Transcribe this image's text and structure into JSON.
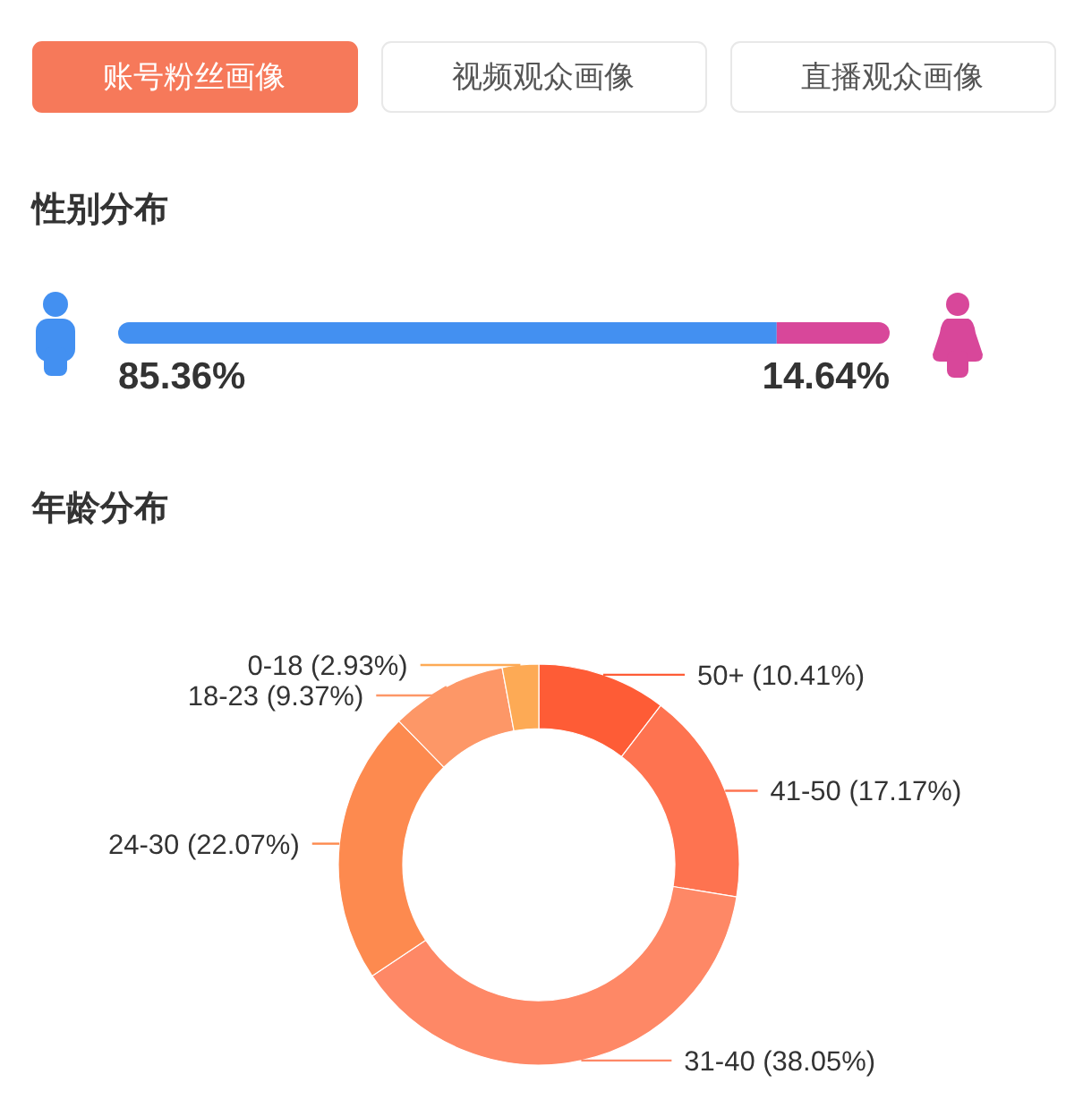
{
  "chart_data": [
    {
      "type": "other",
      "annotations": [
        "账号粉丝画像",
        "视频观众画像",
        "直播观众画像"
      ]
    },
    {
      "type": "bar",
      "title": "性别分布",
      "orientation": "horizontal",
      "stacked": true,
      "categories": [
        null
      ],
      "series": [
        {
          "color": "#4390f1",
          "values": [
            85.36
          ],
          "value_labels": [
            "85.36%"
          ]
        },
        {
          "color": "#d8479a",
          "values": [
            14.64
          ],
          "value_labels": [
            "14.64%"
          ]
        }
      ]
    },
    {
      "type": "donut",
      "title": "年龄分布",
      "categories": [
        "50+",
        "41-50",
        "31-40",
        "24-30",
        "18-23",
        "0-18"
      ],
      "values": [
        10.41,
        17.17,
        38.05,
        22.07,
        9.37,
        2.93
      ],
      "colors": [
        "#fe5c36",
        "#fe7350",
        "#fe8866",
        "#fd8a4f",
        "#fd9767",
        "#fdaa55"
      ],
      "value_labels": [
        "(10.41%)",
        "(17.17%)",
        "(38.05%)",
        "(22.07%)",
        "(9.37%)",
        "(2.93%)"
      ]
    }
  ]
}
